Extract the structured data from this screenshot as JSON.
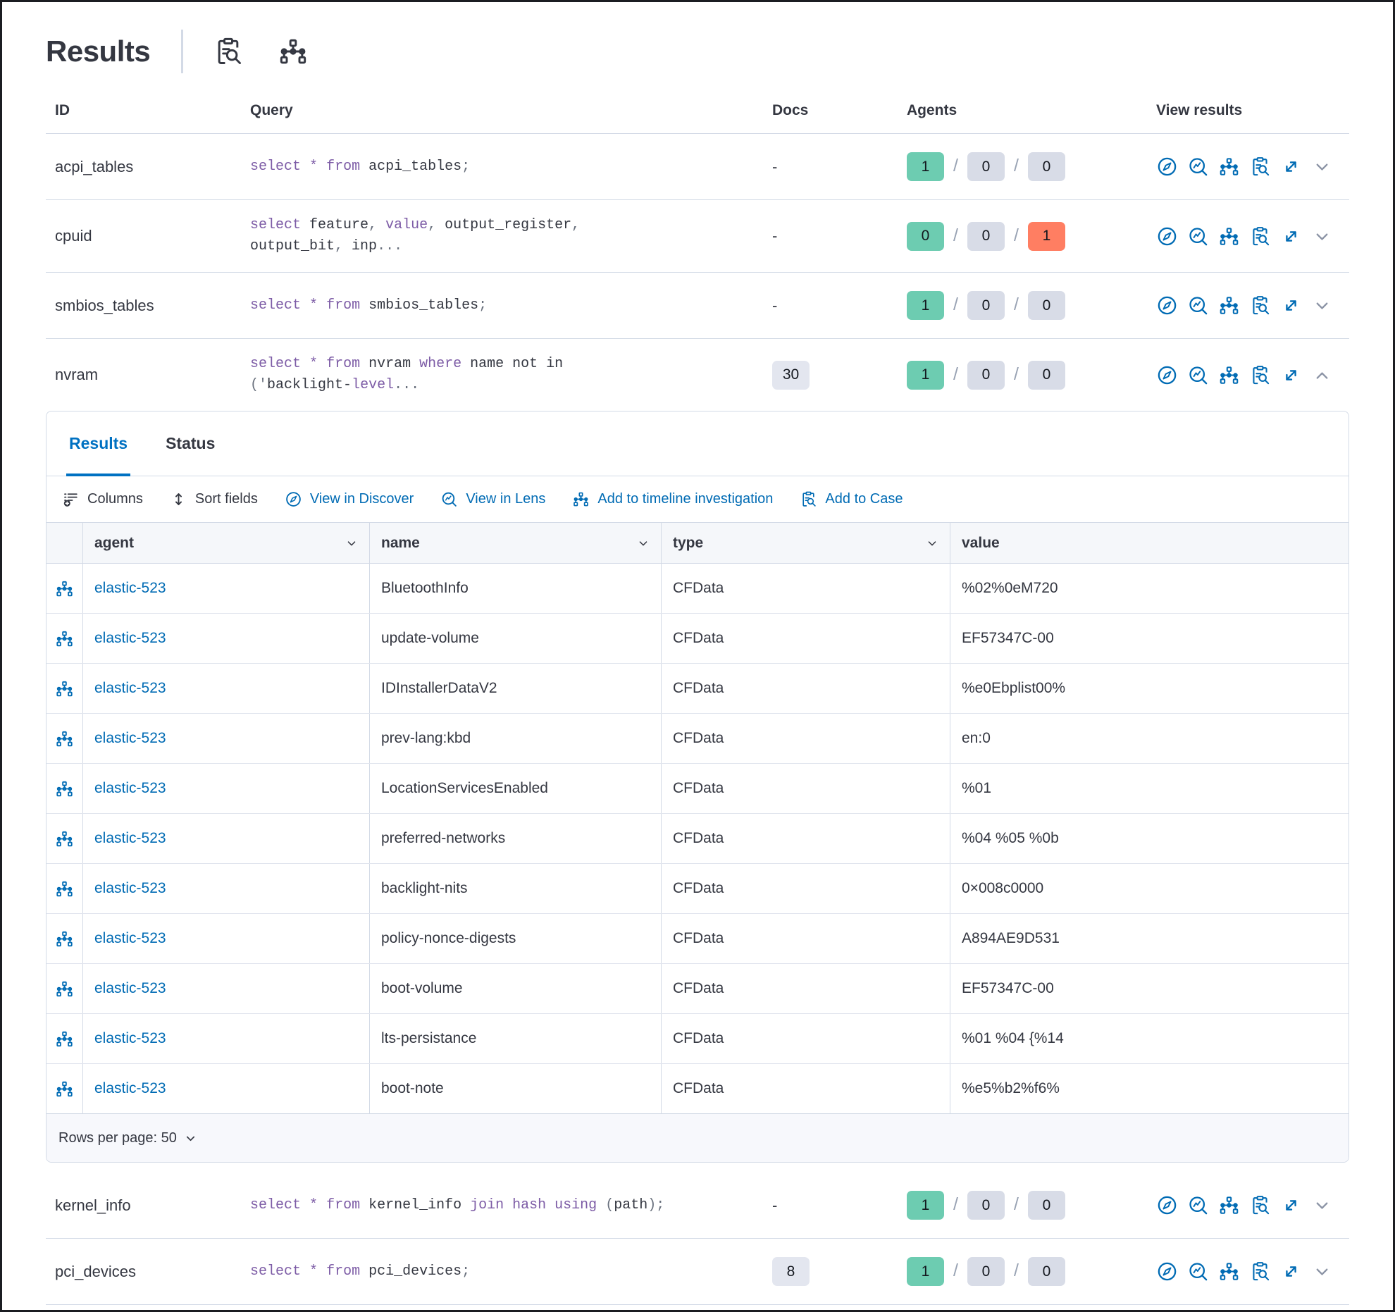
{
  "header": {
    "title": "Results"
  },
  "colors": {
    "accent_blue": "#006BB4",
    "tab_active_blue": "#0071C2",
    "keyword_purple": "#7d5ca6",
    "badge_green": "#6DCCB1",
    "badge_gray": "#D8DCE7",
    "badge_red": "#FF7E62",
    "docs_badge": "#E3E6EF",
    "border": "#D3DAE6",
    "text": "#343741"
  },
  "results_table": {
    "columns": {
      "id": "ID",
      "query": "Query",
      "docs": "Docs",
      "agents": "Agents",
      "view": "View results"
    },
    "sql_keywords": [
      "select",
      "from",
      "where",
      "value",
      "join",
      "hash",
      "using",
      "level"
    ],
    "rows": [
      {
        "id": "acpi_tables",
        "query_lines": [
          "select * from acpi_tables;"
        ],
        "docs": "-",
        "docs_is_badge": false,
        "agents": {
          "success": "1",
          "pending": "0",
          "failed": "0"
        },
        "failed_alert": false,
        "chevron": "down",
        "expanded": false
      },
      {
        "id": "cpuid",
        "query_lines": [
          "select feature, value, output_register,",
          "output_bit, inp..."
        ],
        "docs": "-",
        "docs_is_badge": false,
        "agents": {
          "success": "0",
          "pending": "0",
          "failed": "1"
        },
        "failed_alert": true,
        "chevron": "down",
        "expanded": false
      },
      {
        "id": "smbios_tables",
        "query_lines": [
          "select * from smbios_tables;"
        ],
        "docs": "-",
        "docs_is_badge": false,
        "agents": {
          "success": "1",
          "pending": "0",
          "failed": "0"
        },
        "failed_alert": false,
        "chevron": "down",
        "expanded": false
      },
      {
        "id": "nvram",
        "query_lines": [
          "select * from nvram where name not in",
          "('backlight-level..."
        ],
        "docs": "30",
        "docs_is_badge": true,
        "agents": {
          "success": "1",
          "pending": "0",
          "failed": "0"
        },
        "failed_alert": false,
        "chevron": "up",
        "expanded": true
      },
      {
        "id": "kernel_info",
        "query_lines": [
          "select * from kernel_info join hash using (path);"
        ],
        "docs": "-",
        "docs_is_badge": false,
        "agents": {
          "success": "1",
          "pending": "0",
          "failed": "0"
        },
        "failed_alert": false,
        "chevron": "down",
        "expanded": false
      },
      {
        "id": "pci_devices",
        "query_lines": [
          "select * from pci_devices;"
        ],
        "docs": "8",
        "docs_is_badge": true,
        "agents": {
          "success": "1",
          "pending": "0",
          "failed": "0"
        },
        "failed_alert": false,
        "chevron": "down",
        "expanded": false
      }
    ]
  },
  "expanded_panel": {
    "tabs": [
      {
        "label": "Results",
        "active": true
      },
      {
        "label": "Status",
        "active": false
      }
    ],
    "toolbar": [
      {
        "label": "Columns",
        "icon": "columns-icon",
        "style": "dark"
      },
      {
        "label": "Sort fields",
        "icon": "sort-icon",
        "style": "dark"
      },
      {
        "label": "View in Discover",
        "icon": "discover-icon",
        "style": "blue"
      },
      {
        "label": "View in Lens",
        "icon": "lens-icon",
        "style": "blue"
      },
      {
        "label": "Add to timeline investigation",
        "icon": "timeline-icon",
        "style": "blue"
      },
      {
        "label": "Add to Case",
        "icon": "inspect-icon",
        "style": "blue"
      }
    ],
    "grid": {
      "columns": [
        {
          "label": "agent",
          "sortable": true
        },
        {
          "label": "name",
          "sortable": true
        },
        {
          "label": "type",
          "sortable": true
        },
        {
          "label": "value",
          "sortable": false
        }
      ],
      "rows": [
        {
          "agent": "elastic-523",
          "name": "BluetoothInfo",
          "type": "CFData",
          "value": "%02%0eM720"
        },
        {
          "agent": "elastic-523",
          "name": "update-volume",
          "type": "CFData",
          "value": "EF57347C-00"
        },
        {
          "agent": "elastic-523",
          "name": "IDInstallerDataV2",
          "type": "CFData",
          "value": "%e0Ebplist00%"
        },
        {
          "agent": "elastic-523",
          "name": "prev-lang:kbd",
          "type": "CFData",
          "value": "en:0"
        },
        {
          "agent": "elastic-523",
          "name": "LocationServicesEnabled",
          "type": "CFData",
          "value": "%01"
        },
        {
          "agent": "elastic-523",
          "name": "preferred-networks",
          "type": "CFData",
          "value": "%04 %05 %0b"
        },
        {
          "agent": "elastic-523",
          "name": "backlight-nits",
          "type": "CFData",
          "value": "0×008c0000"
        },
        {
          "agent": "elastic-523",
          "name": "policy-nonce-digests",
          "type": "CFData",
          "value": "A894AE9D531"
        },
        {
          "agent": "elastic-523",
          "name": "boot-volume",
          "type": "CFData",
          "value": "EF57347C-00"
        },
        {
          "agent": "elastic-523",
          "name": "lts-persistance",
          "type": "CFData",
          "value": "%01 %04 {%14"
        },
        {
          "agent": "elastic-523",
          "name": "boot-note",
          "type": "CFData",
          "value": "%e5%b2%f6%"
        }
      ]
    },
    "pagination": {
      "label": "Rows per page: 50"
    }
  }
}
